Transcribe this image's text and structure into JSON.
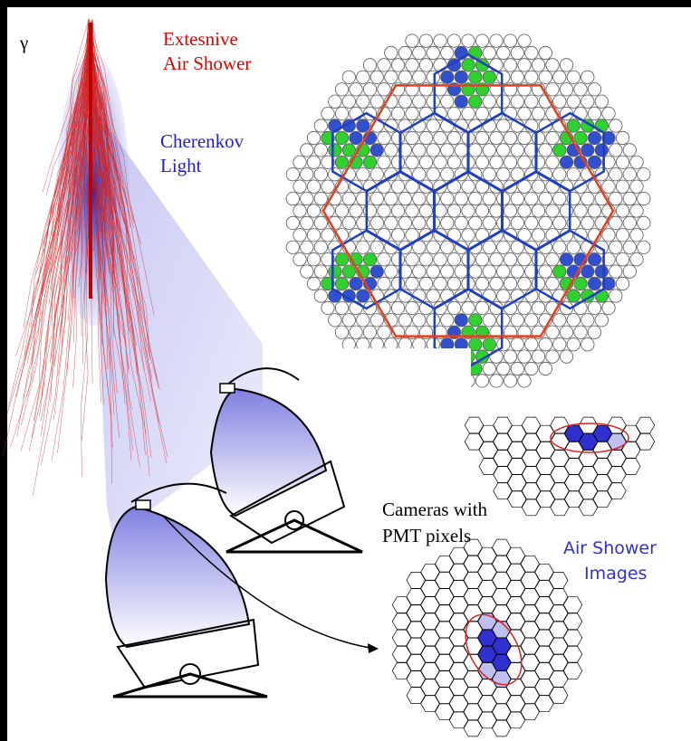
{
  "labels": {
    "gamma": "γ",
    "shower": [
      "Extesnive",
      "Air Shower"
    ],
    "cherenkov": [
      "Cherenkov",
      "Light"
    ],
    "cameras": [
      "Cameras with",
      "PMT pixels"
    ],
    "images": [
      "Air Shower",
      "Images"
    ]
  }
}
